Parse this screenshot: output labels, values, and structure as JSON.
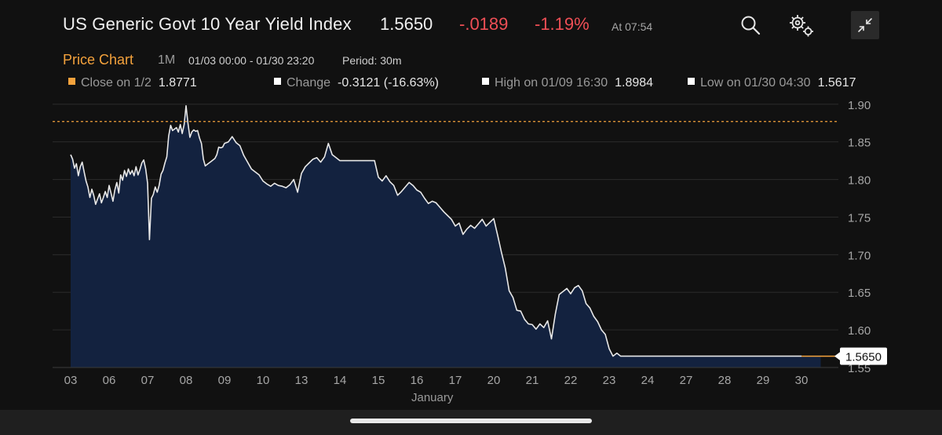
{
  "header": {
    "title": "US Generic Govt 10 Year Yield Index",
    "price": "1.5650",
    "change": "-.0189",
    "change_pct": "-1.19%",
    "timestamp": "At 07:54",
    "icons": [
      "search-icon",
      "settings-icon",
      "collapse-icon"
    ]
  },
  "chart_header": {
    "title": "Price Chart",
    "range": "1M",
    "date_range": "01/03 00:00 - 01/30 23:20",
    "period": "Period: 30m"
  },
  "legend": [
    {
      "label": "Close on 1/2",
      "value": "1.8771",
      "color": "#f4a23c"
    },
    {
      "label": "Change",
      "value": "-0.3121 (-16.63%)",
      "color": "#ffffff"
    },
    {
      "label": "High on 01/09 16:30",
      "value": "1.8984",
      "color": "#ffffff"
    },
    {
      "label": "Low on 01/30 04:30",
      "value": "1.5617",
      "color": "#ffffff"
    }
  ],
  "colors": {
    "accent": "#f4a23c",
    "negative": "#ef4f56",
    "area_fill": "#13223f",
    "line": "#e8e8e8",
    "background": "#111111"
  },
  "chart_data": {
    "type": "area",
    "x_month_label": "January",
    "x_ticks": [
      "03",
      "06",
      "07",
      "08",
      "09",
      "10",
      "13",
      "14",
      "15",
      "16",
      "17",
      "20",
      "21",
      "22",
      "23",
      "24",
      "27",
      "28",
      "29",
      "30"
    ],
    "y_ticks": [
      "1.90",
      "1.85",
      "1.80",
      "1.75",
      "1.70",
      "1.65",
      "1.60",
      "1.55"
    ],
    "ylim": [
      1.55,
      1.905
    ],
    "reference_line": {
      "value": 1.8771,
      "label": "Close on 1/2"
    },
    "last_value_label": "1.5650",
    "last_value": 1.565,
    "grid": "horizontal",
    "series": [
      {
        "x": [
          0,
          0.05,
          0.1,
          0.15,
          0.2,
          0.25,
          0.3,
          0.35,
          0.4,
          0.45,
          0.5,
          0.55,
          0.6,
          0.65,
          0.7,
          0.75,
          0.8,
          0.85,
          0.9,
          0.95,
          1,
          1.05,
          1.1,
          1.15,
          1.2,
          1.25,
          1.3,
          1.35,
          1.4,
          1.45,
          1.5,
          1.55,
          1.6,
          1.65,
          1.7,
          1.75,
          1.8,
          1.85,
          1.9,
          1.95,
          2,
          2.05,
          2.1,
          2.15,
          2.2,
          2.25,
          2.3,
          2.35,
          2.4,
          2.45,
          2.5,
          2.55,
          2.6,
          2.65,
          2.7,
          2.75,
          2.8,
          2.85,
          2.9,
          2.95,
          3,
          3.05,
          3.1,
          3.15,
          3.2,
          3.25,
          3.3,
          3.35,
          3.4,
          3.45,
          3.5,
          3.55,
          3.6,
          3.65,
          3.7,
          3.75,
          3.8,
          3.85,
          3.9,
          3.95,
          4,
          4.1,
          4.2,
          4.3,
          4.4,
          4.5,
          4.6,
          4.7,
          4.8,
          4.9,
          5,
          5.1,
          5.2,
          5.3,
          5.4,
          5.5,
          5.6,
          5.7,
          5.8,
          5.9,
          6,
          6.1,
          6.2,
          6.3,
          6.4,
          6.5,
          6.6,
          6.7,
          6.8,
          6.9,
          7,
          7.1,
          7.2,
          7.3,
          7.4,
          7.5,
          7.6,
          7.7,
          7.8,
          7.9,
          8,
          8.1,
          8.2,
          8.3,
          8.4,
          8.5,
          8.6,
          8.7,
          8.8,
          8.9,
          9,
          9.1,
          9.2,
          9.3,
          9.4,
          9.5,
          9.6,
          9.7,
          9.8,
          9.9,
          10,
          10.1,
          10.2,
          10.3,
          10.4,
          10.5,
          10.6,
          10.7,
          10.8,
          10.9,
          11,
          11.1,
          11.2,
          11.3,
          11.4,
          11.5,
          11.6,
          11.7,
          11.8,
          11.9,
          12,
          12.1,
          12.2,
          12.3,
          12.4,
          12.5,
          12.6,
          12.7,
          12.8,
          12.9,
          13,
          13.1,
          13.2,
          13.3,
          13.4,
          13.5,
          13.6,
          13.7,
          13.8,
          13.9,
          14,
          14.1,
          14.2,
          14.3,
          14.4,
          14.5,
          14.6,
          14.7,
          14.8,
          14.9,
          15,
          15.1,
          15.2,
          15.3,
          15.4,
          15.5,
          15.6,
          15.7,
          15.8,
          15.9,
          16,
          16.1,
          16.2,
          16.3,
          16.4,
          16.5,
          16.6,
          16.7,
          16.8,
          16.9,
          17,
          17.1,
          17.2,
          17.3,
          17.4,
          17.5,
          17.6,
          17.7,
          17.8,
          17.9,
          18,
          18.1,
          18.2,
          18.3,
          18.4,
          18.5,
          18.6,
          18.7,
          18.8,
          18.9,
          19,
          19.1,
          19.2,
          19.3,
          19.4,
          19.5
        ],
        "values": [
          1.833,
          1.827,
          1.815,
          1.821,
          1.805,
          1.817,
          1.823,
          1.81,
          1.798,
          1.79,
          1.776,
          1.787,
          1.779,
          1.767,
          1.774,
          1.781,
          1.769,
          1.776,
          1.784,
          1.776,
          1.792,
          1.782,
          1.771,
          1.786,
          1.796,
          1.782,
          1.806,
          1.799,
          1.812,
          1.804,
          1.814,
          1.807,
          1.812,
          1.805,
          1.817,
          1.806,
          1.813,
          1.822,
          1.826,
          1.814,
          1.795,
          1.72,
          1.775,
          1.78,
          1.79,
          1.783,
          1.792,
          1.807,
          1.812,
          1.822,
          1.83,
          1.858,
          1.872,
          1.865,
          1.867,
          1.869,
          1.863,
          1.873,
          1.861,
          1.873,
          1.898,
          1.875,
          1.856,
          1.863,
          1.866,
          1.864,
          1.865,
          1.855,
          1.848,
          1.827,
          1.818,
          1.82,
          1.822,
          1.824,
          1.826,
          1.828,
          1.833,
          1.843,
          1.842,
          1.843,
          1.848,
          1.85,
          1.857,
          1.849,
          1.845,
          1.832,
          1.823,
          1.814,
          1.81,
          1.806,
          1.798,
          1.794,
          1.791,
          1.795,
          1.792,
          1.791,
          1.789,
          1.793,
          1.8,
          1.783,
          1.808,
          1.817,
          1.822,
          1.827,
          1.829,
          1.823,
          1.83,
          1.848,
          1.833,
          1.829,
          1.825,
          1.825,
          1.825,
          1.825,
          1.825,
          1.825,
          1.825,
          1.825,
          1.825,
          1.825,
          1.803,
          1.798,
          1.805,
          1.797,
          1.792,
          1.779,
          1.784,
          1.79,
          1.796,
          1.792,
          1.786,
          1.783,
          1.775,
          1.768,
          1.771,
          1.769,
          1.763,
          1.757,
          1.752,
          1.747,
          1.738,
          1.742,
          1.727,
          1.734,
          1.739,
          1.735,
          1.741,
          1.747,
          1.738,
          1.743,
          1.748,
          1.726,
          1.703,
          1.682,
          1.652,
          1.643,
          1.626,
          1.625,
          1.614,
          1.608,
          1.607,
          1.601,
          1.608,
          1.603,
          1.612,
          1.588,
          1.621,
          1.647,
          1.651,
          1.655,
          1.648,
          1.656,
          1.659,
          1.652,
          1.635,
          1.629,
          1.618,
          1.611,
          1.6,
          1.594,
          1.575,
          1.565,
          1.569,
          1.565,
          1.565,
          1.565,
          1.565,
          1.565,
          1.565,
          1.565,
          1.565,
          1.565,
          1.565,
          1.565,
          1.565,
          1.565,
          1.565,
          1.565,
          1.565,
          1.565,
          1.565,
          1.565,
          1.565,
          1.565,
          1.565,
          1.565,
          1.565,
          1.565,
          1.565,
          1.565,
          1.565,
          1.565,
          1.565,
          1.565,
          1.565,
          1.565,
          1.565,
          1.565,
          1.565,
          1.565,
          1.565,
          1.565,
          1.565,
          1.565,
          1.565,
          1.565,
          1.565,
          1.565,
          1.565,
          1.565,
          1.565,
          1.565,
          1.565,
          1.565,
          1.565,
          1.565
        ]
      }
    ]
  }
}
